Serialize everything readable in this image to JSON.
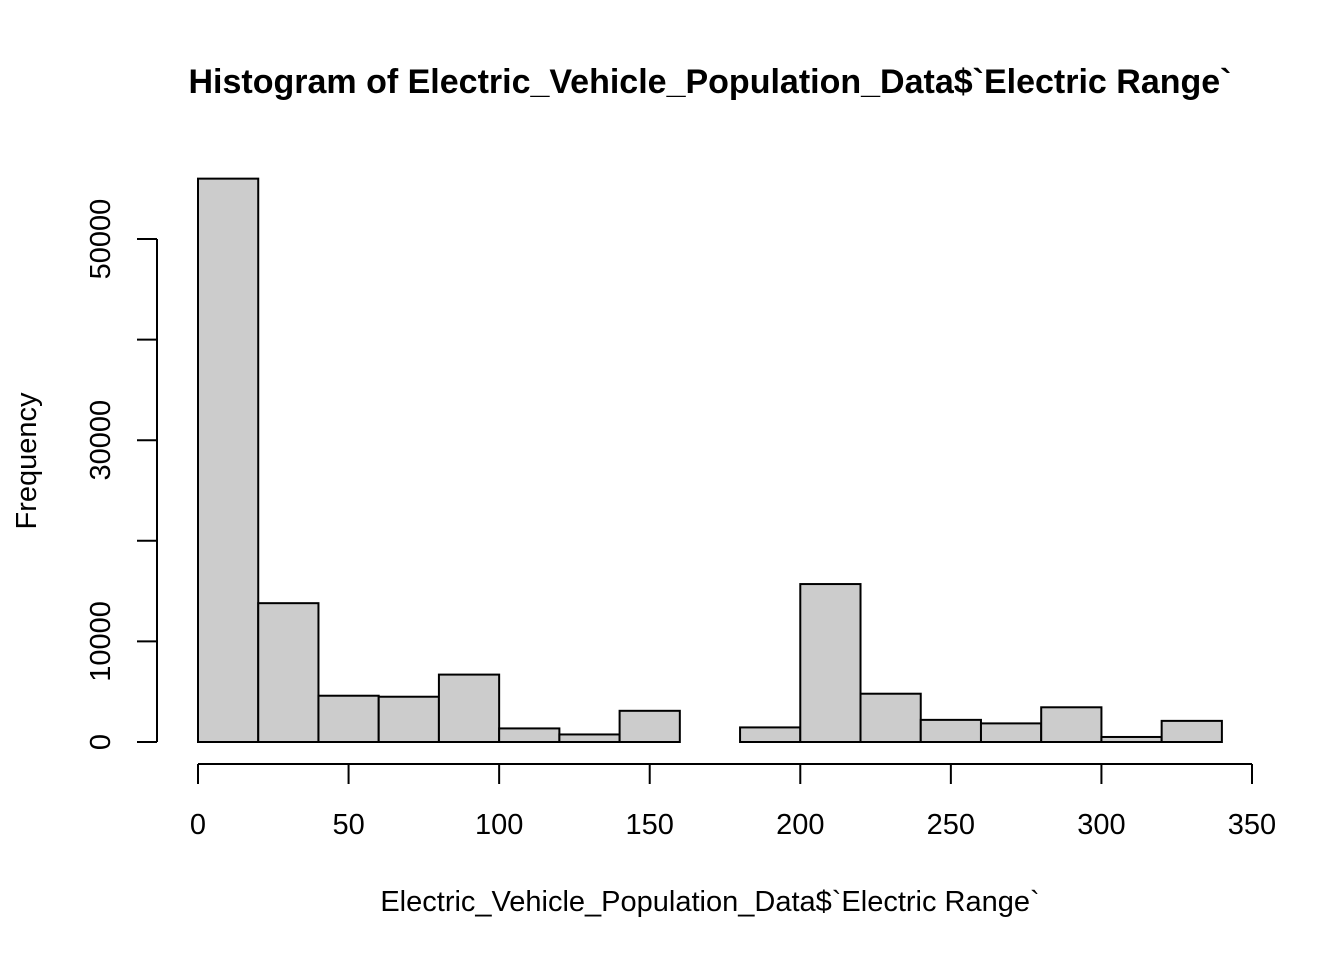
{
  "chart_data": {
    "type": "bar",
    "title": "Histogram of Electric_Vehicle_Population_Data$`Electric Range`",
    "xlabel": "Electric_Vehicle_Population_Data$`Electric Range`",
    "ylabel": "Frequency",
    "bins": [
      {
        "from": 0,
        "to": 20,
        "count": 56000
      },
      {
        "from": 20,
        "to": 40,
        "count": 13800
      },
      {
        "from": 40,
        "to": 60,
        "count": 4600
      },
      {
        "from": 60,
        "to": 80,
        "count": 4500
      },
      {
        "from": 80,
        "to": 100,
        "count": 6700
      },
      {
        "from": 100,
        "to": 120,
        "count": 1350
      },
      {
        "from": 120,
        "to": 140,
        "count": 750
      },
      {
        "from": 140,
        "to": 160,
        "count": 3100
      },
      {
        "from": 160,
        "to": 180,
        "count": 0
      },
      {
        "from": 180,
        "to": 200,
        "count": 1450
      },
      {
        "from": 200,
        "to": 220,
        "count": 15700
      },
      {
        "from": 220,
        "to": 240,
        "count": 4800
      },
      {
        "from": 240,
        "to": 260,
        "count": 2200
      },
      {
        "from": 260,
        "to": 280,
        "count": 1850
      },
      {
        "from": 280,
        "to": 300,
        "count": 3450
      },
      {
        "from": 300,
        "to": 320,
        "count": 500
      },
      {
        "from": 320,
        "to": 340,
        "count": 2100
      }
    ],
    "xlim": [
      0,
      350
    ],
    "ylim": [
      0,
      56000
    ],
    "x_ticks": [
      0,
      50,
      100,
      150,
      200,
      250,
      300,
      350
    ],
    "y_ticks": [
      0,
      10000,
      20000,
      30000,
      40000,
      50000
    ],
    "y_tick_labels": [
      "0",
      "10000",
      "",
      "30000",
      "",
      "50000"
    ],
    "grid": false,
    "colors": {
      "bar_fill": "#cccccc",
      "bar_stroke": "#000000"
    }
  }
}
